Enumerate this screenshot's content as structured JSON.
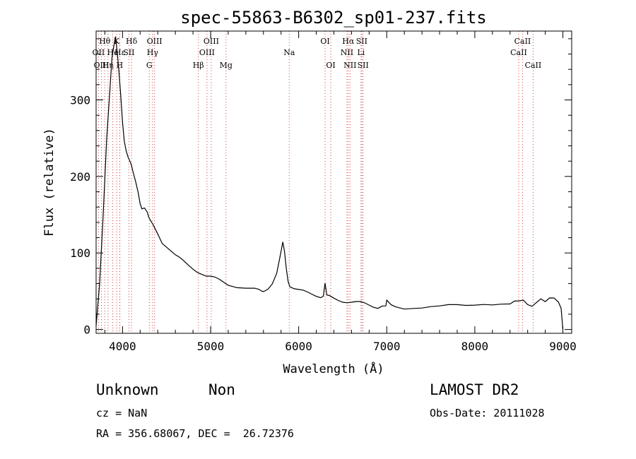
{
  "chart_data": {
    "type": "line",
    "title": "spec-55863-B6302_sp01-237.fits",
    "xlabel": "Wavelength (Å)",
    "ylabel": "Flux (relative)",
    "xlim": [
      3700,
      9100
    ],
    "ylim": [
      -5,
      390
    ],
    "xticks": [
      4000,
      5000,
      6000,
      7000,
      8000,
      9000
    ],
    "yticks": [
      0,
      100,
      200,
      300
    ],
    "series": [
      {
        "x": [
          3700,
          3740,
          3780,
          3820,
          3860,
          3880,
          3900,
          3920,
          3940,
          3960,
          3980,
          4000,
          4020,
          4040,
          4060,
          4080,
          4100,
          4120,
          4150,
          4180,
          4200,
          4220,
          4250,
          4280,
          4300,
          4350,
          4400,
          4450,
          4500,
          4550,
          4600,
          4650,
          4700,
          4750,
          4800,
          4850,
          4900,
          4950,
          5000,
          5050,
          5100,
          5150,
          5200,
          5300,
          5400,
          5500,
          5550,
          5580,
          5600,
          5650,
          5700,
          5750,
          5780,
          5800,
          5820,
          5840,
          5860,
          5880,
          5900,
          5950,
          6000,
          6050,
          6100,
          6150,
          6200,
          6250,
          6280,
          6300,
          6320,
          6350,
          6400,
          6450,
          6500,
          6550,
          6600,
          6650,
          6700,
          6750,
          6800,
          6850,
          6900,
          6950,
          6990,
          7000,
          7050,
          7100,
          7200,
          7300,
          7400,
          7500,
          7600,
          7700,
          7800,
          7900,
          8000,
          8100,
          8200,
          8300,
          8400,
          8450,
          8500,
          8550,
          8600,
          8650,
          8700,
          8750,
          8800,
          8850,
          8900,
          8950,
          8980,
          9000
        ],
        "y": [
          5,
          60,
          150,
          250,
          320,
          360,
          375,
          385,
          360,
          330,
          300,
          270,
          250,
          240,
          230,
          220,
          210,
          200,
          190,
          180,
          170,
          163,
          160,
          150,
          140,
          132,
          125,
          117,
          110,
          104,
          97,
          92,
          87,
          83,
          80,
          77,
          74,
          70,
          68,
          66,
          64,
          62,
          60,
          57,
          55,
          53,
          50,
          48,
          49,
          54,
          62,
          75,
          90,
          100,
          112,
          100,
          80,
          65,
          58,
          54,
          51,
          49,
          47,
          46,
          45,
          44,
          45,
          60,
          43,
          42,
          40,
          39,
          38,
          37,
          36,
          35,
          34,
          33,
          32,
          31,
          30,
          32,
          30,
          36,
          30,
          29,
          28,
          30,
          30,
          30,
          29,
          30,
          31,
          32,
          34,
          35,
          33,
          32,
          31,
          35,
          37,
          40,
          35,
          32,
          35,
          38,
          34,
          40,
          42,
          38,
          30,
          0
        ]
      }
    ],
    "lines": [
      {
        "label": "Hθ",
        "wave": 3798,
        "row": 0
      },
      {
        "label": "OII",
        "wave": 3727,
        "row": 1
      },
      {
        "label": "OIII",
        "wave": 3760,
        "row": 2
      },
      {
        "label": "Hη",
        "wave": 3835,
        "row": 2
      },
      {
        "label": "He",
        "wave": 3889,
        "row": 1
      },
      {
        "label": "K",
        "wave": 3934,
        "row": 0
      },
      {
        "label": "H",
        "wave": 3968,
        "row": 2
      },
      {
        "label": "Hε",
        "wave": 3970,
        "row": 1
      },
      {
        "label": "SII",
        "wave": 4072,
        "row": 1
      },
      {
        "label": "Hδ",
        "wave": 4102,
        "row": 0
      },
      {
        "label": "OIII",
        "wave": 4363,
        "row": 0
      },
      {
        "label": "Hγ",
        "wave": 4341,
        "row": 1
      },
      {
        "label": "G",
        "wave": 4304,
        "row": 2
      },
      {
        "label": "Hβ",
        "wave": 4861,
        "row": 2
      },
      {
        "label": "OIII",
        "wave": 5007,
        "row": 0
      },
      {
        "label": "OIII",
        "wave": 4959,
        "row": 1
      },
      {
        "label": "Mg",
        "wave": 5175,
        "row": 2
      },
      {
        "label": "Na",
        "wave": 5893,
        "row": 1
      },
      {
        "label": "OI",
        "wave": 6300,
        "row": 0
      },
      {
        "label": "OI",
        "wave": 6364,
        "row": 2
      },
      {
        "label": "Hα",
        "wave": 6563,
        "row": 0
      },
      {
        "label": "SII",
        "wave": 6716,
        "row": 0
      },
      {
        "label": "NII",
        "wave": 6548,
        "row": 1
      },
      {
        "label": "Li",
        "wave": 6708,
        "row": 1
      },
      {
        "label": "NII",
        "wave": 6583,
        "row": 2
      },
      {
        "label": "SII",
        "wave": 6731,
        "row": 2
      },
      {
        "label": "CaII",
        "wave": 8542,
        "row": 0
      },
      {
        "label": "CaII",
        "wave": 8498,
        "row": 1
      },
      {
        "label": "CaII",
        "wave": 8662,
        "row": 2
      }
    ]
  },
  "info": {
    "object_class": "Unknown",
    "subclass": "Non",
    "survey": "LAMOST DR2",
    "cz": "cz = NaN",
    "obs_date": "Obs-Date: 20111028",
    "coords": "RA = 356.68067, DEC =  26.72376"
  }
}
